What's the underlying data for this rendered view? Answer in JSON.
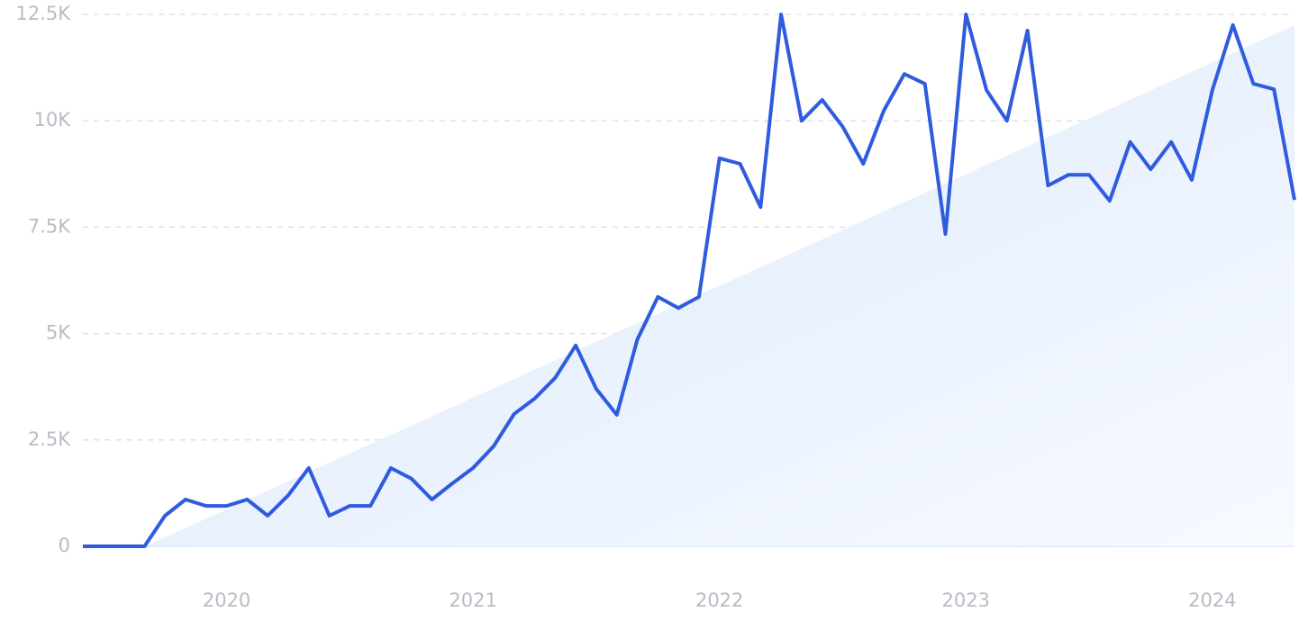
{
  "chart_data": {
    "type": "line",
    "categories": [
      null,
      null,
      null,
      null,
      null,
      null,
      null,
      "2020",
      null,
      null,
      null,
      null,
      null,
      null,
      null,
      null,
      null,
      null,
      null,
      "2021",
      null,
      null,
      null,
      null,
      null,
      null,
      null,
      null,
      null,
      null,
      null,
      "2022",
      null,
      null,
      null,
      null,
      null,
      null,
      null,
      null,
      null,
      null,
      null,
      "2023",
      null,
      null,
      null,
      null,
      null,
      null,
      null,
      null,
      null,
      null,
      null,
      "2024",
      null,
      null,
      null,
      null
    ],
    "series": [
      {
        "color": "#2f5bdf",
        "values": [
          0,
          0,
          0,
          0,
          720,
          1100,
          950,
          950,
          1100,
          720,
          1200,
          1840,
          720,
          950,
          950,
          1840,
          1590,
          1100,
          1480,
          1840,
          2350,
          3110,
          3470,
          3960,
          4720,
          3700,
          3090,
          4860,
          5860,
          5600,
          5860,
          9120,
          8990,
          7970,
          12500,
          10000,
          10490,
          9860,
          8990,
          10240,
          11100,
          10870,
          7340,
          12500,
          10720,
          10000,
          12120,
          8480,
          8730,
          8730,
          8120,
          9500,
          8860,
          9500,
          8610,
          10720,
          12250,
          10870,
          10740,
          8140
        ]
      }
    ],
    "ylim": [
      0,
      12500
    ],
    "yticks": [
      0,
      {
        "value": 2500,
        "label": "2.5K"
      },
      {
        "value": 5000,
        "label": "5K"
      },
      {
        "value": 7500,
        "label": "7.5K"
      },
      {
        "value": 10000,
        "label": "10K"
      },
      {
        "value": 12500,
        "label": "12.5K"
      }
    ],
    "grid": true
  }
}
